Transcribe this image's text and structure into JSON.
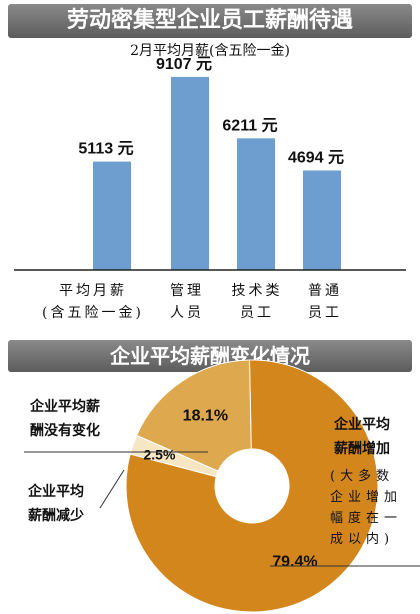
{
  "chart_data": [
    {
      "type": "bar",
      "title": "劳动密集型企业员工薪酬待遇",
      "subtitle": "2月平均月薪(含五险一金)",
      "categories": [
        "平均月薪(含五险一金)",
        "管理人员",
        "技术类员工",
        "普通员工"
      ],
      "category_lines": [
        [
          "平均月薪",
          "(含五险一金)"
        ],
        [
          "管理",
          "人员"
        ],
        [
          "技术类",
          "员工"
        ],
        [
          "普通",
          "员工"
        ]
      ],
      "values": [
        5113,
        9107,
        6211,
        4694
      ],
      "value_labels": [
        "5113 元",
        "9107 元",
        "6211 元",
        "4694 元"
      ],
      "unit": "元",
      "ylim": [
        0,
        10000
      ],
      "bar_color": "#6d9ecf"
    },
    {
      "type": "pie",
      "title": "企业平均薪酬变化情况",
      "slices": [
        {
          "label": "企业平均薪酬增加",
          "value": 79.4,
          "display": "79.4%",
          "color": "#d3861c"
        },
        {
          "label": "企业平均薪酬减少",
          "value": 2.5,
          "display": "2.5%",
          "color": "#f6e6c4"
        },
        {
          "label": "企业平均薪酬没有变化",
          "value": 18.1,
          "display": "18.1%",
          "color": "#dda84e"
        }
      ],
      "label_lines": {
        "increase": [
          "企业平均",
          "薪酬增加"
        ],
        "decrease": [
          "企业平均",
          "薪酬减少"
        ],
        "unchanged": [
          "企业平均薪",
          "酬没有变化"
        ]
      },
      "increase_note": [
        "(大多数",
        "企业增加",
        "幅度在一",
        "成以内)"
      ]
    }
  ]
}
